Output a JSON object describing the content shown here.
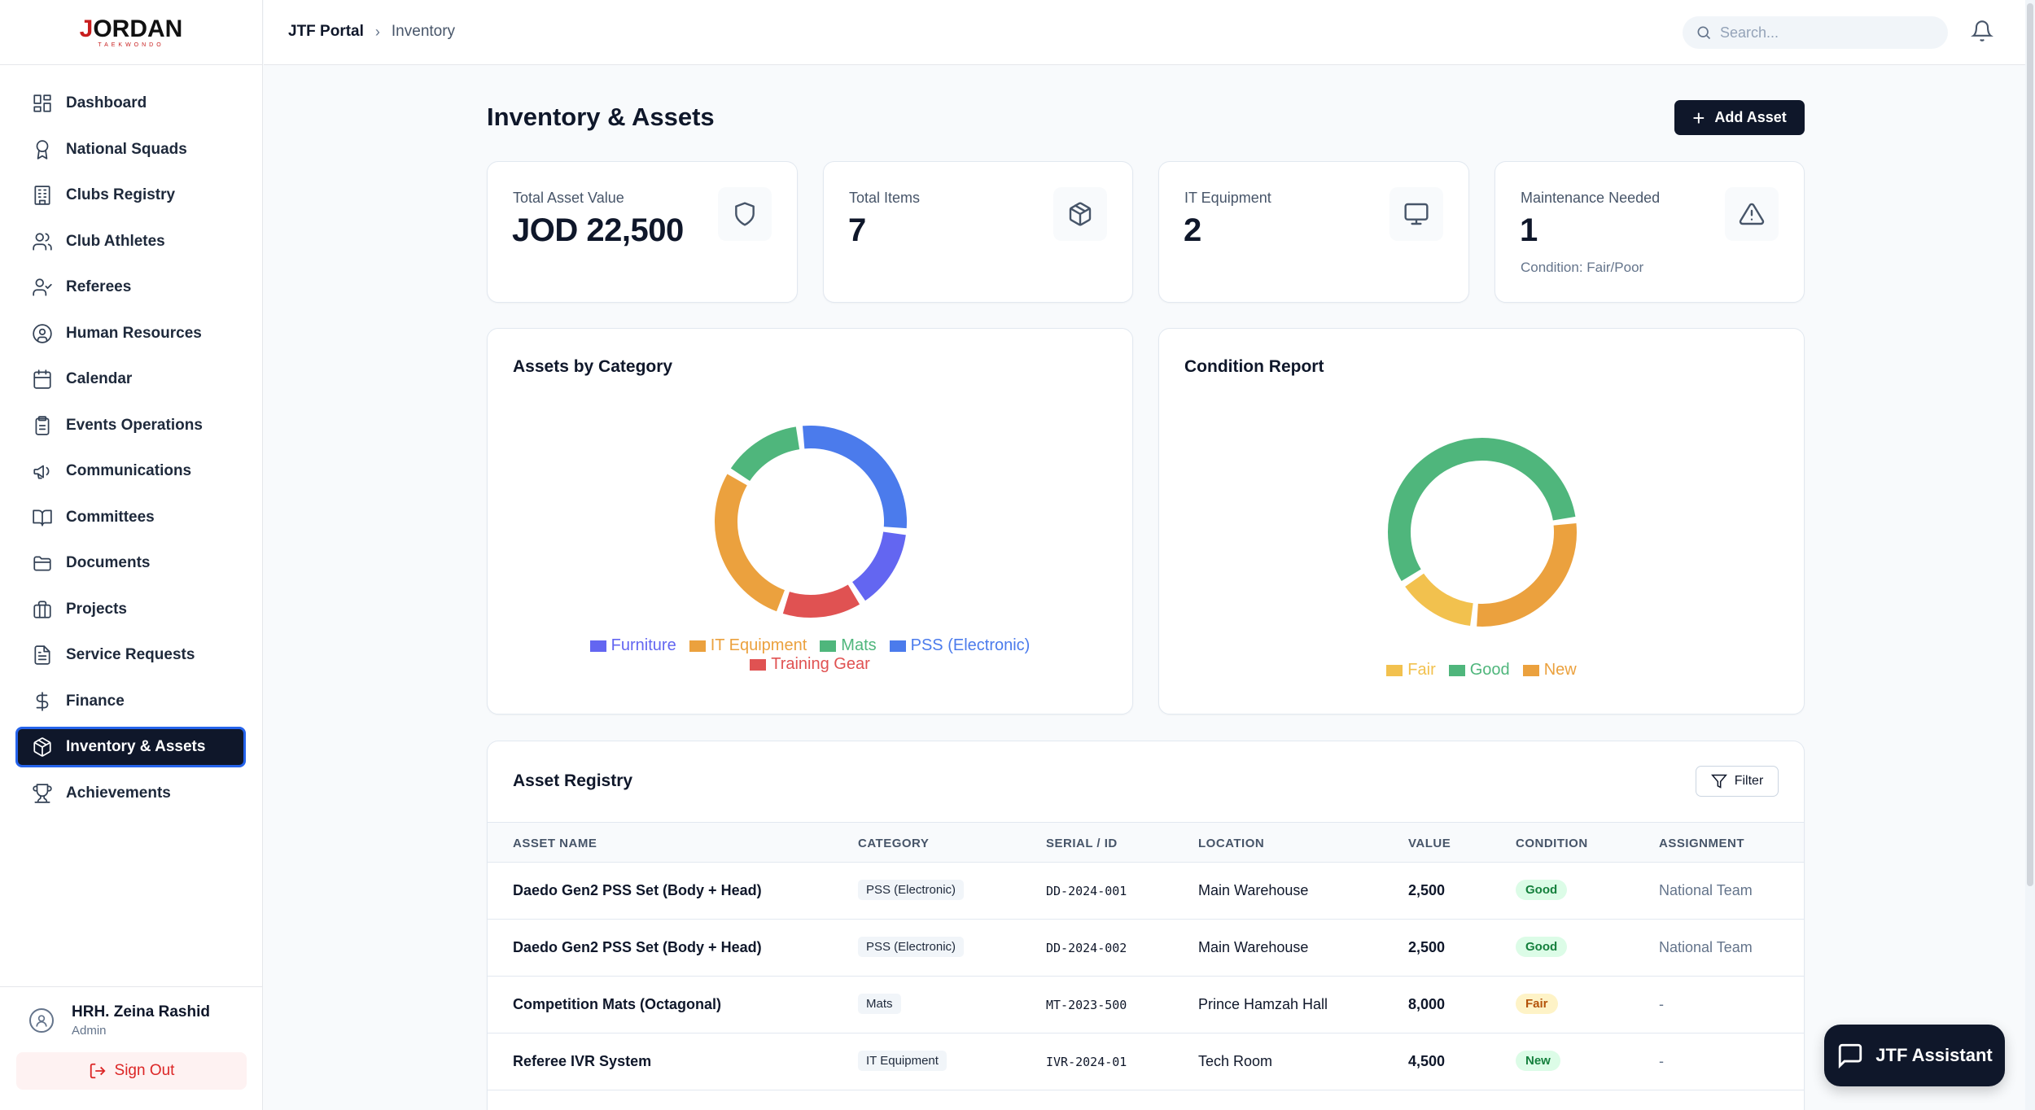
{
  "brand": {
    "name_first": "J",
    "name_rest": "ORDAN",
    "sub": "TAEKWONDO"
  },
  "sidebar": {
    "items": [
      {
        "label": "Dashboard",
        "icon": "dashboard-icon"
      },
      {
        "label": "National Squads",
        "icon": "award-icon"
      },
      {
        "label": "Clubs Registry",
        "icon": "building-icon"
      },
      {
        "label": "Club Athletes",
        "icon": "users-icon"
      },
      {
        "label": "Referees",
        "icon": "user-check-icon"
      },
      {
        "label": "Human Resources",
        "icon": "user-circle-icon"
      },
      {
        "label": "Calendar",
        "icon": "calendar-icon"
      },
      {
        "label": "Events Operations",
        "icon": "clipboard-icon"
      },
      {
        "label": "Communications",
        "icon": "megaphone-icon"
      },
      {
        "label": "Committees",
        "icon": "book-icon"
      },
      {
        "label": "Documents",
        "icon": "folder-icon"
      },
      {
        "label": "Projects",
        "icon": "briefcase-icon"
      },
      {
        "label": "Service Requests",
        "icon": "file-text-icon"
      },
      {
        "label": "Finance",
        "icon": "dollar-icon"
      },
      {
        "label": "Inventory & Assets",
        "icon": "package-icon",
        "active": true
      },
      {
        "label": "Achievements",
        "icon": "trophy-icon"
      }
    ]
  },
  "user": {
    "name": "HRH. Zeina Rashid",
    "role": "Admin",
    "signout_label": "Sign Out"
  },
  "header": {
    "breadcrumb_root": "JTF Portal",
    "breadcrumb_current": "Inventory",
    "search_placeholder": "Search..."
  },
  "page": {
    "title": "Inventory & Assets",
    "add_button": "Add Asset"
  },
  "stats": [
    {
      "label": "Total Asset Value",
      "value": "JOD 22,500",
      "sub": "",
      "icon": "shield-icon"
    },
    {
      "label": "Total Items",
      "value": "7",
      "sub": "",
      "icon": "package-icon"
    },
    {
      "label": "IT Equipment",
      "value": "2",
      "sub": "",
      "icon": "monitor-icon"
    },
    {
      "label": "Maintenance Needed",
      "value": "1",
      "sub": "Condition: Fair/Poor",
      "icon": "alert-triangle-icon"
    }
  ],
  "chart_data": [
    {
      "type": "pie",
      "title": "Assets by Category",
      "categories": [
        "Furniture",
        "IT Equipment",
        "Mats",
        "PSS (Electronic)",
        "Training Gear"
      ],
      "values": [
        1,
        2,
        1,
        2,
        1
      ],
      "colors": [
        "#6366f1",
        "#eba13e",
        "#4fb67c",
        "#4b7bec",
        "#e05252"
      ],
      "legend": "bottom"
    },
    {
      "type": "pie",
      "title": "Condition Report",
      "categories": [
        "Fair",
        "Good",
        "New"
      ],
      "values": [
        1,
        4,
        2
      ],
      "colors": [
        "#f2c14e",
        "#4fb67c",
        "#eba13e"
      ],
      "legend": "bottom"
    }
  ],
  "registry": {
    "title": "Asset Registry",
    "filter_label": "Filter",
    "columns": [
      "ASSET NAME",
      "CATEGORY",
      "SERIAL / ID",
      "LOCATION",
      "VALUE",
      "CONDITION",
      "ASSIGNMENT"
    ],
    "rows": [
      {
        "name": "Daedo Gen2 PSS Set (Body + Head)",
        "category": "PSS (Electronic)",
        "serial": "DD-2024-001",
        "location": "Main Warehouse",
        "value": "2,500",
        "condition": "Good",
        "assignment": "National Team"
      },
      {
        "name": "Daedo Gen2 PSS Set (Body + Head)",
        "category": "PSS (Electronic)",
        "serial": "DD-2024-002",
        "location": "Main Warehouse",
        "value": "2,500",
        "condition": "Good",
        "assignment": "National Team"
      },
      {
        "name": "Competition Mats (Octagonal)",
        "category": "Mats",
        "serial": "MT-2023-500",
        "location": "Prince Hamzah Hall",
        "value": "8,000",
        "condition": "Fair",
        "assignment": "-"
      },
      {
        "name": "Referee IVR System",
        "category": "IT Equipment",
        "serial": "IVR-2024-01",
        "location": "Tech Room",
        "value": "4,500",
        "condition": "New",
        "assignment": "-"
      }
    ]
  },
  "assistant": {
    "label": "JTF Assistant"
  }
}
